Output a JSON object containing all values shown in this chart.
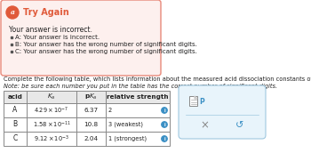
{
  "header_bg": "#fdf0ee",
  "header_border": "#e8897a",
  "header_icon_color": "#e05a3a",
  "header_title": "Try Again",
  "header_title_color": "#e05a3a",
  "header_body": "Your answer is incorrect.",
  "bullets": [
    "A: Your answer is incorrect.",
    "B: Your answer has the wrong number of significant digits.",
    "C: Your answer has the wrong number of significant digits."
  ],
  "instruction_line1": "Complete the following table, which lists information about the measured acid dissociation constants of three unknown weak acids.",
  "instruction_line2": "Note: be sure each number you put in the table has the correct number of significant digits.",
  "panel_bg": "#e8f4fb",
  "panel_border": "#a0c8e0",
  "body_text_color": "#222222",
  "table_border_color": "#888888",
  "table_header_bg": "#e8e8e8",
  "blue_icon_color": "#3a8fc4",
  "fig_w": 3.5,
  "fig_h": 1.72,
  "dpi": 100
}
